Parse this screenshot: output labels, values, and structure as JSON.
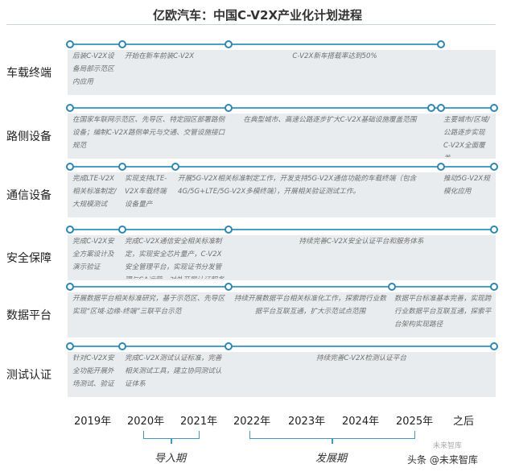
{
  "title": "亿欧汽车：中国C-V2X产业化计划进程",
  "rows": [
    {
      "label": "车载终端",
      "segments": [
        {
          "start": 0,
          "end": 1,
          "text": "后装C-V2X设备局部示范区内应用"
        },
        {
          "start": 1,
          "end": 3,
          "text": "开始在新车前装C-V2X"
        },
        {
          "start": 3,
          "end": 7,
          "text": "C-V2X新车搭载率达到50%"
        }
      ]
    },
    {
      "label": "路侧设备",
      "segments": [
        {
          "start": 0,
          "end": 3,
          "text": "在国家车联网示范区、先导区、特定园区部署路侧设备；编制C-V2X路侧单元与交通、交管设施接口规范"
        },
        {
          "start": 3,
          "end": 6.8,
          "text": "在典型城市、高速公路逐步扩大C-V2X基础设施覆盖范围"
        },
        {
          "start": 6.8,
          "end": 7,
          "text": ""
        },
        {
          "start": 7,
          "end": 8,
          "text": "主要城市/区域/公路逐步实现C-V2X全面覆盖"
        }
      ]
    },
    {
      "label": "通信设备",
      "segments": [
        {
          "start": 0,
          "end": 1,
          "text": "完成LTE-V2X相关标准制定/大规模测试"
        },
        {
          "start": 1,
          "end": 2,
          "text": "实现支持LTE-V2X车载终端设备量产"
        },
        {
          "start": 2,
          "end": 7,
          "text": "开展5G-V2X相关标准制定工作，开发支持5G-V2X通信功能的车载终端（包含4G/5G+LTE/5G-V2X多模终端），开展相关验证测试工作。"
        },
        {
          "start": 7,
          "end": 8,
          "text": "推动5G-V2X规模化应用"
        }
      ]
    },
    {
      "label": "安全保障",
      "segments": [
        {
          "start": 0,
          "end": 1,
          "text": "完成C-V2X安全方案设计及演示验证"
        },
        {
          "start": 1,
          "end": 3,
          "text": "完成C-V2X通信安全相关标准制定，实现安全芯片量产，C-V2X安全管理平台，实现证书分发管理与CA运营，对外开展认证服务"
        },
        {
          "start": 3,
          "end": 8,
          "text": "持续完善C-V2X安全认证平台和服务体系"
        }
      ]
    },
    {
      "label": "数据平台",
      "segments": [
        {
          "start": 0,
          "end": 3,
          "text": "开展数据平台相关标准研究，基于示范区、先导区实现“区域-边缘-终端”三联平台示范"
        },
        {
          "start": 3,
          "end": 6,
          "text": "持续开展数据平台相关标准化工作，探索跨行业数据平台互联互通，扩大示范试点范围"
        },
        {
          "start": 6,
          "end": 8,
          "text": "数据平台标准基本完善，实现跨行业数据平台互联互通，探索平台架构实现路径"
        }
      ]
    },
    {
      "label": "测试认证",
      "segments": [
        {
          "start": 0,
          "end": 1,
          "text": "针对C-V2X安全功能开展外场测试、验证"
        },
        {
          "start": 1,
          "end": 3,
          "text": "完成C-V2X测试认证标准，完善相关测试工具，建立协同测试认证体系"
        },
        {
          "start": 3,
          "end": 8,
          "text": "持续完善C-V2X检测认证平台"
        }
      ]
    }
  ],
  "years": [
    "2019年",
    "2020年",
    "2021年",
    "2022年",
    "2023年",
    "2024年",
    "2025年",
    "之后"
  ],
  "phases": [
    {
      "label": "导入期",
      "from": 1,
      "to": 2
    },
    {
      "label": "发展期",
      "from": 3,
      "to": 6
    }
  ],
  "watermark": {
    "text": "头条 @未来智库",
    "faded": "未来智库"
  },
  "colors": {
    "accent": "#2f86b1",
    "band": "#e9ecee",
    "segment_text": "#6f6f6f"
  }
}
